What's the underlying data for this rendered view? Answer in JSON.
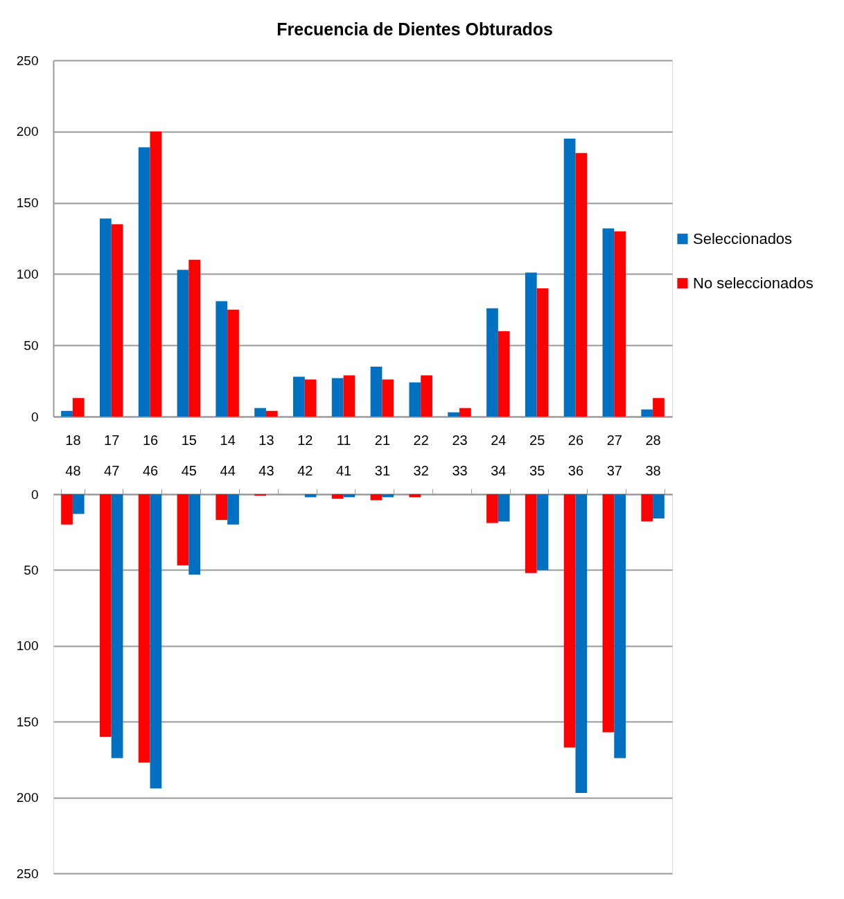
{
  "chart_data": [
    {
      "type": "bar",
      "title": "Frecuencia de Dientes Obturados",
      "categories": [
        "18",
        "17",
        "16",
        "15",
        "14",
        "13",
        "12",
        "11",
        "21",
        "22",
        "23",
        "24",
        "25",
        "26",
        "27",
        "28"
      ],
      "series": [
        {
          "name": "Seleccionados",
          "color": "#0070c0",
          "values": [
            4,
            139,
            189,
            103,
            81,
            6,
            28,
            27,
            35,
            24,
            3,
            76,
            101,
            195,
            132,
            5
          ]
        },
        {
          "name": "No seleccionados",
          "color": "#ff0000",
          "values": [
            13,
            135,
            200,
            110,
            75,
            4,
            26,
            29,
            26,
            29,
            6,
            60,
            90,
            185,
            130,
            13
          ]
        }
      ],
      "ylim": [
        0,
        250
      ],
      "yticks": [
        0,
        50,
        100,
        150,
        200,
        250
      ],
      "grid": "y",
      "legend": "right"
    },
    {
      "type": "bar",
      "categories": [
        "48",
        "47",
        "46",
        "45",
        "44",
        "43",
        "42",
        "41",
        "31",
        "32",
        "33",
        "34",
        "35",
        "36",
        "37",
        "38"
      ],
      "series": [
        {
          "color": "#ff0000",
          "values": [
            20,
            160,
            177,
            47,
            17,
            1,
            0,
            3,
            4,
            2,
            0,
            19,
            52,
            167,
            157,
            18
          ]
        },
        {
          "color": "#0070c0",
          "values": [
            13,
            174,
            194,
            53,
            20,
            0,
            2,
            2,
            2,
            0,
            0,
            18,
            50,
            197,
            174,
            16
          ]
        }
      ],
      "ylim": [
        250,
        0
      ],
      "yticks": [
        0,
        50,
        100,
        150,
        200,
        250
      ],
      "grid": "y"
    }
  ]
}
